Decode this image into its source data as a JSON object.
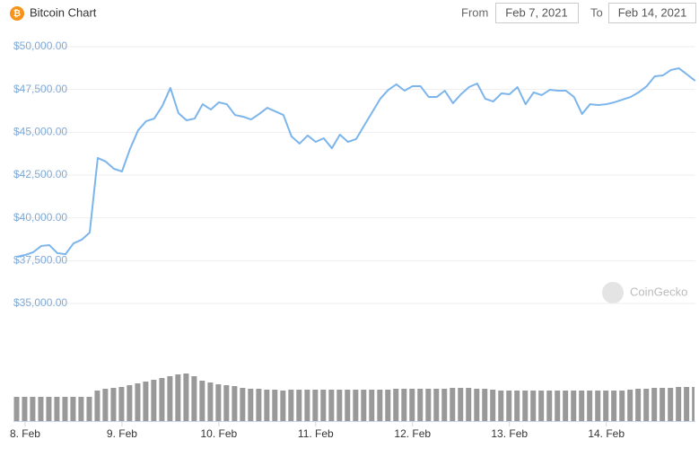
{
  "chart_data": {
    "type": "line",
    "title": "Bitcoin Chart",
    "controls": {
      "from_label": "From",
      "from": "Feb 7, 2021",
      "to_label": "To",
      "to": "Feb 14, 2021"
    },
    "watermark": "CoinGecko",
    "color": "#7cb5ec",
    "grid": true,
    "xlim": [
      7.88,
      14.92
    ],
    "xticks": [
      {
        "value": 8,
        "label": "8. Feb"
      },
      {
        "value": 9,
        "label": "9. Feb"
      },
      {
        "value": 10,
        "label": "10. Feb"
      },
      {
        "value": 11,
        "label": "11. Feb"
      },
      {
        "value": 12,
        "label": "12. Feb"
      },
      {
        "value": 13,
        "label": "13. Feb"
      },
      {
        "value": 14,
        "label": "14. Feb"
      }
    ],
    "ylim": [
      35000,
      50000
    ],
    "yticks": [
      {
        "value": 35000,
        "label": "$35,000.00"
      },
      {
        "value": 37500,
        "label": "$37,500.00"
      },
      {
        "value": 40000,
        "label": "$40,000.00"
      },
      {
        "value": 42500,
        "label": "$42,500.00"
      },
      {
        "value": 45000,
        "label": "$45,000.00"
      },
      {
        "value": 47500,
        "label": "$47,500.00"
      },
      {
        "value": 50000,
        "label": "$50,000.00"
      }
    ],
    "x": [
      7.917,
      8,
      8.083,
      8.167,
      8.25,
      8.333,
      8.417,
      8.5,
      8.583,
      8.667,
      8.75,
      8.833,
      8.917,
      9,
      9.083,
      9.167,
      9.25,
      9.333,
      9.417,
      9.5,
      9.583,
      9.667,
      9.75,
      9.833,
      9.917,
      10,
      10.083,
      10.167,
      10.25,
      10.333,
      10.417,
      10.5,
      10.583,
      10.667,
      10.75,
      10.833,
      10.917,
      11,
      11.083,
      11.167,
      11.25,
      11.333,
      11.417,
      11.5,
      11.583,
      11.667,
      11.75,
      11.833,
      11.917,
      12,
      12.083,
      12.167,
      12.25,
      12.333,
      12.417,
      12.5,
      12.583,
      12.667,
      12.75,
      12.833,
      12.917,
      13,
      13.083,
      13.167,
      13.25,
      13.333,
      13.417,
      13.5,
      13.583,
      13.667,
      13.75,
      13.833,
      13.917,
      14,
      14.083,
      14.167,
      14.25,
      14.333,
      14.417,
      14.5,
      14.583,
      14.667,
      14.75,
      14.833,
      14.917
    ],
    "values": [
      37730,
      37830,
      37990,
      38360,
      38410,
      37940,
      37880,
      38510,
      38720,
      39140,
      43500,
      43290,
      42870,
      42710,
      44020,
      45120,
      45650,
      45800,
      46540,
      47590,
      46120,
      45700,
      45800,
      46640,
      46330,
      46750,
      46640,
      46010,
      45910,
      45750,
      46070,
      46430,
      46220,
      46010,
      44760,
      44340,
      44810,
      44440,
      44650,
      44070,
      44860,
      44440,
      44600,
      45390,
      46170,
      46960,
      47480,
      47800,
      47430,
      47690,
      47690,
      47060,
      47060,
      47430,
      46700,
      47220,
      47640,
      47850,
      46960,
      46800,
      47270,
      47220,
      47640,
      46640,
      47330,
      47170,
      47480,
      47430,
      47430,
      47060,
      46070,
      46640,
      46590,
      46640,
      46750,
      46910,
      47060,
      47330,
      47690,
      48270,
      48320,
      48640,
      48740,
      48380,
      48010
    ],
    "volume": {
      "color": "#999999",
      "ylim": [
        0,
        60
      ],
      "values": [
        27,
        27,
        27,
        27,
        27,
        27,
        27,
        27,
        27,
        27,
        34,
        36,
        37,
        38,
        40,
        42,
        44,
        46,
        48,
        50,
        52,
        53,
        50,
        45,
        43,
        41,
        40,
        39,
        37,
        36,
        36,
        35,
        35,
        34,
        35,
        35,
        35,
        35,
        35,
        35,
        35,
        35,
        35,
        35,
        35,
        35,
        35,
        36,
        36,
        36,
        36,
        36,
        36,
        36,
        37,
        37,
        37,
        36,
        36,
        35,
        34,
        34,
        34,
        34,
        34,
        34,
        34,
        34,
        34,
        34,
        34,
        34,
        34,
        34,
        34,
        34,
        35,
        36,
        36,
        37,
        37,
        37,
        38,
        38,
        38
      ]
    }
  }
}
